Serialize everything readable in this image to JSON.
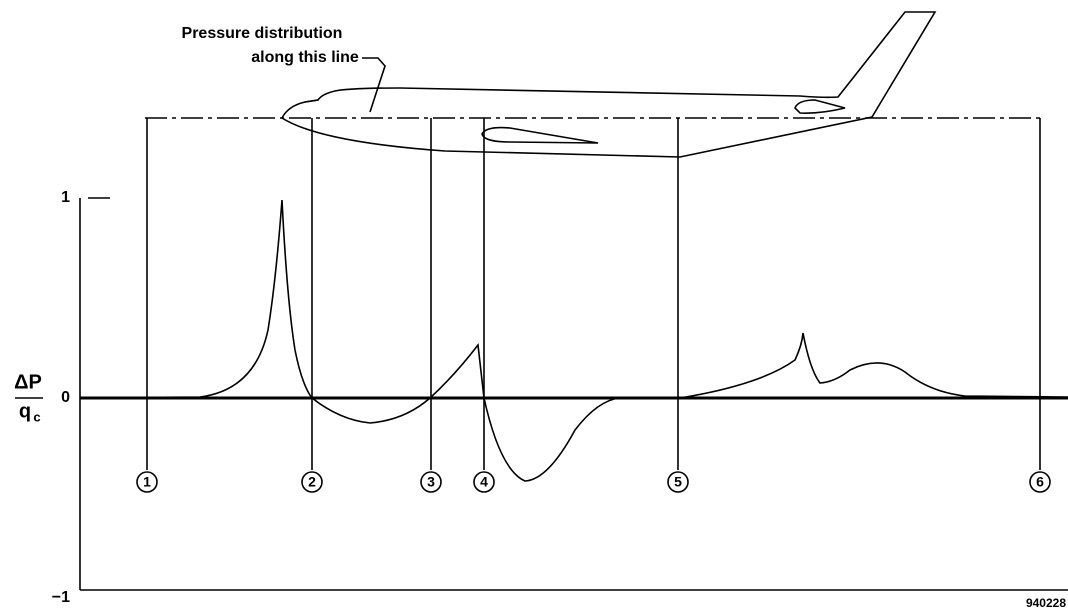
{
  "annotation": {
    "line1": "Pressure distribution",
    "line2": "along this line"
  },
  "axis": {
    "numerator": "ΔP",
    "denominator": "q",
    "subscript": "c",
    "ticks": [
      "1",
      "0",
      "−1"
    ]
  },
  "stations": [
    "1",
    "2",
    "3",
    "4",
    "5",
    "6"
  ],
  "figure_id": "940228"
}
